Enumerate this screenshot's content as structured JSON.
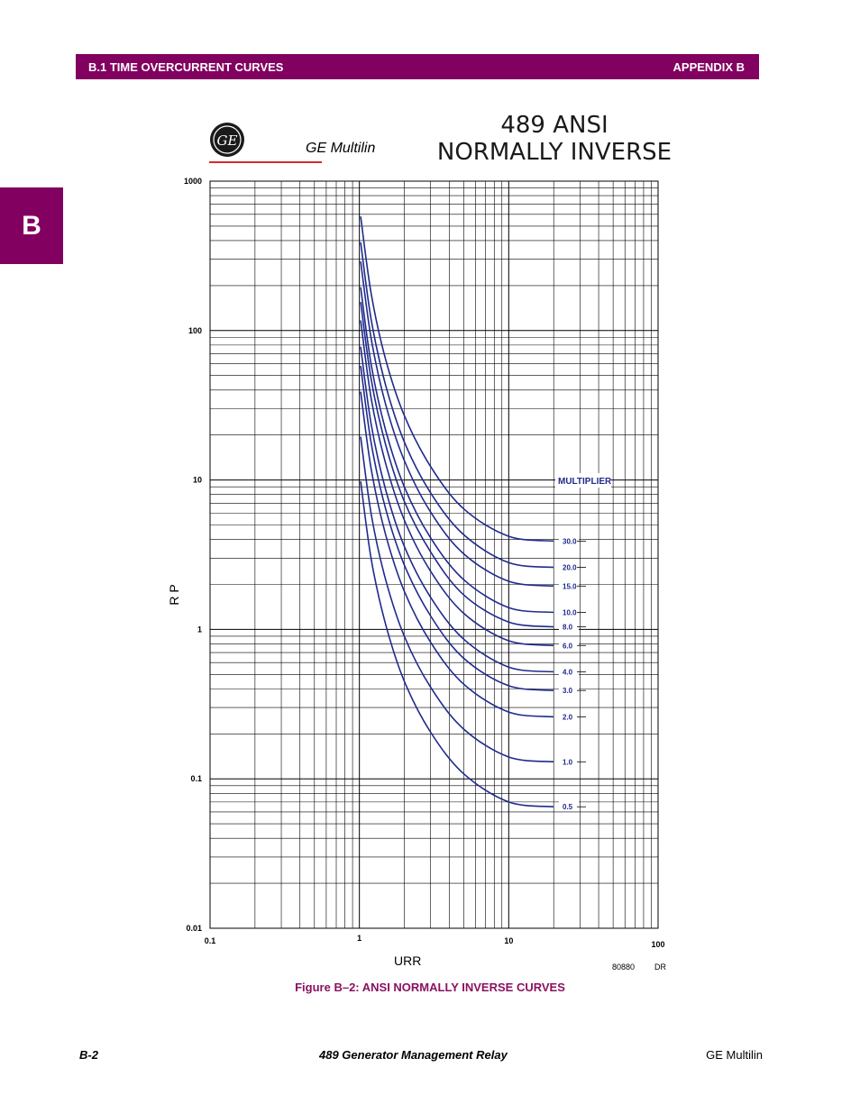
{
  "header": {
    "section": "B.1 TIME OVERCURRENT CURVES",
    "appendix": "APPENDIX B"
  },
  "side_tab": "B",
  "brand": {
    "logo_text": "GE",
    "name": "GE Multilin"
  },
  "chart_data": {
    "type": "line",
    "title_lines": [
      "489 ANSI",
      "NORMALLY INVERSE"
    ],
    "xlabel": "URR",
    "ylabel": "R P",
    "x_scale": "log",
    "y_scale": "log",
    "xlim": [
      0.1,
      100
    ],
    "ylim": [
      0.01,
      1000
    ],
    "x_ticks": [
      {
        "v": 0.1,
        "label": "0.1"
      },
      {
        "v": 1,
        "label": "1"
      },
      {
        "v": 10,
        "label": "10"
      },
      {
        "v": 100,
        "label": "100"
      }
    ],
    "y_ticks": [
      {
        "v": 0.01,
        "label": "0.01"
      },
      {
        "v": 0.1,
        "label": "0.1"
      },
      {
        "v": 1,
        "label": "1"
      },
      {
        "v": 10,
        "label": "10"
      },
      {
        "v": 100,
        "label": "100"
      },
      {
        "v": 1000,
        "label": "1000"
      }
    ],
    "grid": true,
    "legend_title": "MULTIPLIER",
    "series_color": "#1f2a8c",
    "series": [
      {
        "name": "30.0",
        "x": [
          1.02,
          1.2,
          1.5,
          2.0,
          3.0,
          5.0,
          10.0,
          20.0
        ],
        "y": [
          580,
          176,
          64,
          27,
          12.3,
          6.4,
          4.2,
          3.9
        ]
      },
      {
        "name": "20.0",
        "x": [
          1.02,
          1.2,
          1.5,
          2.0,
          3.0,
          5.0,
          10.0,
          20.0
        ],
        "y": [
          390,
          118,
          43,
          18,
          8.2,
          4.3,
          2.8,
          2.6
        ]
      },
      {
        "name": "15.0",
        "x": [
          1.02,
          1.2,
          1.5,
          2.0,
          3.0,
          5.0,
          10.0,
          20.0
        ],
        "y": [
          290,
          88,
          32,
          13.5,
          6.1,
          3.2,
          2.1,
          1.95
        ]
      },
      {
        "name": "10.0",
        "x": [
          1.02,
          1.2,
          1.5,
          2.0,
          3.0,
          5.0,
          10.0,
          20.0
        ],
        "y": [
          195,
          59,
          21.5,
          9.0,
          4.1,
          2.15,
          1.4,
          1.3
        ]
      },
      {
        "name": "8.0",
        "x": [
          1.02,
          1.2,
          1.5,
          2.0,
          3.0,
          5.0,
          10.0,
          20.0
        ],
        "y": [
          155,
          47,
          17.2,
          7.2,
          3.3,
          1.7,
          1.12,
          1.04
        ]
      },
      {
        "name": "6.0",
        "x": [
          1.02,
          1.2,
          1.5,
          2.0,
          3.0,
          5.0,
          10.0,
          20.0
        ],
        "y": [
          117,
          35,
          12.9,
          5.4,
          2.45,
          1.28,
          0.84,
          0.78
        ]
      },
      {
        "name": "4.0",
        "x": [
          1.02,
          1.2,
          1.5,
          2.0,
          3.0,
          5.0,
          10.0,
          20.0
        ],
        "y": [
          78,
          23.5,
          8.6,
          3.6,
          1.64,
          0.86,
          0.56,
          0.52
        ]
      },
      {
        "name": "3.0",
        "x": [
          1.02,
          1.2,
          1.5,
          2.0,
          3.0,
          5.0,
          10.0,
          20.0
        ],
        "y": [
          58,
          17.6,
          6.4,
          2.7,
          1.23,
          0.64,
          0.42,
          0.39
        ]
      },
      {
        "name": "2.0",
        "x": [
          1.02,
          1.2,
          1.5,
          2.0,
          3.0,
          5.0,
          10.0,
          20.0
        ],
        "y": [
          39,
          11.8,
          4.3,
          1.8,
          0.82,
          0.43,
          0.28,
          0.26
        ]
      },
      {
        "name": "1.0",
        "x": [
          1.02,
          1.2,
          1.5,
          2.0,
          3.0,
          5.0,
          10.0,
          20.0
        ],
        "y": [
          19.5,
          5.9,
          2.15,
          0.9,
          0.41,
          0.215,
          0.14,
          0.13
        ]
      },
      {
        "name": "0.5",
        "x": [
          1.02,
          1.2,
          1.5,
          2.0,
          3.0,
          5.0,
          10.0,
          20.0
        ],
        "y": [
          9.8,
          2.95,
          1.08,
          0.45,
          0.205,
          0.108,
          0.07,
          0.065
        ]
      }
    ],
    "drawing_refs": [
      "80880",
      "DR"
    ]
  },
  "caption": "Figure B–2: ANSI NORMALLY INVERSE CURVES",
  "footer": {
    "page": "B-2",
    "product": "489 Generator Management Relay",
    "company": "GE Multilin"
  }
}
